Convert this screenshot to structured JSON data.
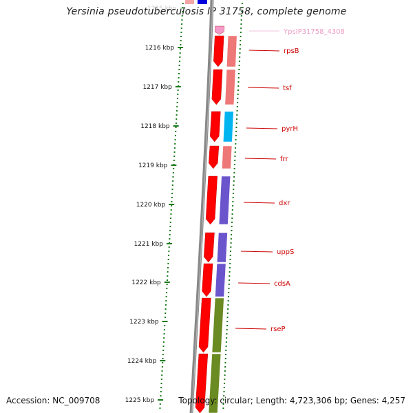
{
  "title": "Yersinia pseudotuberculosis IP 31758, complete genome",
  "footer": {
    "accession": "Accession: NC_009708",
    "summary": "Topology: circular; Length: 4,723,306 bp; Genes: 4,257"
  },
  "scale_ticks": [
    {
      "label": "1215 kbp",
      "faded": true
    },
    {
      "label": "1216 kbp"
    },
    {
      "label": "1217 kbp"
    },
    {
      "label": "1218 kbp"
    },
    {
      "label": "1219 kbp"
    },
    {
      "label": "1220 kbp"
    },
    {
      "label": "1221 kbp"
    },
    {
      "label": "1222 kbp"
    },
    {
      "label": "1223 kbp"
    },
    {
      "label": "1224 kbp"
    },
    {
      "label": "1225 kbp"
    }
  ],
  "genes": [
    {
      "name": "YpsIP31758_4308",
      "color": "#e88ab8",
      "faded": true
    },
    {
      "name": "rpsB",
      "color": "#cc0000"
    },
    {
      "name": "tsf",
      "color": "#cc0000"
    },
    {
      "name": "pyrH",
      "color": "#cc0000"
    },
    {
      "name": "frr",
      "color": "#cc0000"
    },
    {
      "name": "dxr",
      "color": "#cc0000"
    },
    {
      "name": "uppS",
      "color": "#cc0000"
    },
    {
      "name": "cdsA",
      "color": "#cc0000"
    },
    {
      "name": "rseP",
      "color": "#cc0000"
    }
  ],
  "colors": {
    "cds_arrow": "#ff0000",
    "ribosomal": "#ee7777",
    "nucleotide": "#00b4f0",
    "lipid": "#6a55cc",
    "membrane": "#6a8a22",
    "backbone": "#888888",
    "tick": "#1a7a1a"
  }
}
